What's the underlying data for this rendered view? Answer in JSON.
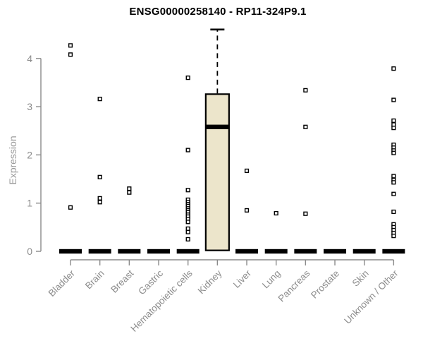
{
  "figure": {
    "title": "ENSG00000258140 - RP11-324P9.1",
    "y_axis_title": "Expression"
  },
  "colors": {
    "box_fill": "#ece5cb",
    "box_stroke": "#000000",
    "median_color": "#000000",
    "zero_bar_color": "#000000",
    "outlier_stroke": "#000000",
    "outlier_fill": "#ffffff",
    "axis_color": "#8a8a8a",
    "tick_label_color": "#8c8c8c",
    "title_color": "#000000",
    "background": "#ffffff"
  },
  "chart_data": {
    "type": "boxplot",
    "title": "ENSG00000258140 - RP11-324P9.1",
    "xlabel": "",
    "ylabel": "Expression",
    "ylim": [
      0,
      4.65
    ],
    "yticks": [
      0,
      1,
      2,
      3,
      4
    ],
    "grid": false,
    "legend": "none",
    "categories": [
      "Bladder",
      "Brain",
      "Breast",
      "Gastric",
      "Hematopoietic cells",
      "Kidney",
      "Liver",
      "Lung",
      "Pancreas",
      "Prostate",
      "Skin",
      "Unknown / Other"
    ],
    "series": [
      {
        "category": "Bladder",
        "box": {
          "q1": 0,
          "median": 0,
          "q3": 0,
          "whisker_low": 0,
          "whisker_high": 0
        },
        "outliers": [
          4.27,
          4.08,
          0.91
        ]
      },
      {
        "category": "Brain",
        "box": {
          "q1": 0,
          "median": 0,
          "q3": 0,
          "whisker_low": 0,
          "whisker_high": 0
        },
        "outliers": [
          3.16,
          1.54,
          1.1,
          1.02
        ]
      },
      {
        "category": "Breast",
        "box": {
          "q1": 0,
          "median": 0,
          "q3": 0,
          "whisker_low": 0,
          "whisker_high": 0
        },
        "outliers": [
          1.3,
          1.22
        ]
      },
      {
        "category": "Gastric",
        "box": {
          "q1": 0,
          "median": 0,
          "q3": 0,
          "whisker_low": 0,
          "whisker_high": 0
        },
        "outliers": []
      },
      {
        "category": "Hematopoietic cells",
        "box": {
          "q1": 0,
          "median": 0,
          "q3": 0,
          "whisker_low": 0,
          "whisker_high": 0
        },
        "outliers": [
          3.6,
          2.1,
          1.27,
          1.07,
          1.02,
          0.98,
          0.94,
          0.89,
          0.85,
          0.81,
          0.76,
          0.72,
          0.67,
          0.61,
          0.47,
          0.4,
          0.25
        ]
      },
      {
        "category": "Kidney",
        "box": {
          "q1": 0.02,
          "median": 2.58,
          "q3": 3.26,
          "whisker_low": 0.02,
          "whisker_high": 4.6
        },
        "outliers": []
      },
      {
        "category": "Liver",
        "box": {
          "q1": 0,
          "median": 0,
          "q3": 0,
          "whisker_low": 0,
          "whisker_high": 0
        },
        "outliers": [
          1.67,
          0.85
        ]
      },
      {
        "category": "Lung",
        "box": {
          "q1": 0,
          "median": 0,
          "q3": 0,
          "whisker_low": 0,
          "whisker_high": 0
        },
        "outliers": [
          0.79
        ]
      },
      {
        "category": "Pancreas",
        "box": {
          "q1": 0,
          "median": 0,
          "q3": 0,
          "whisker_low": 0,
          "whisker_high": 0
        },
        "outliers": [
          3.34,
          2.58,
          0.78
        ]
      },
      {
        "category": "Prostate",
        "box": {
          "q1": 0,
          "median": 0,
          "q3": 0,
          "whisker_low": 0,
          "whisker_high": 0
        },
        "outliers": []
      },
      {
        "category": "Skin",
        "box": {
          "q1": 0,
          "median": 0,
          "q3": 0,
          "whisker_low": 0,
          "whisker_high": 0
        },
        "outliers": []
      },
      {
        "category": "Unknown / Other",
        "box": {
          "q1": 0,
          "median": 0,
          "q3": 0,
          "whisker_low": 0,
          "whisker_high": 0
        },
        "outliers": [
          3.79,
          3.14,
          2.71,
          2.63,
          2.56,
          2.21,
          2.15,
          2.09,
          2.04,
          1.56,
          1.48,
          1.43,
          1.19,
          0.82,
          0.56,
          0.5,
          0.44,
          0.38,
          0.32
        ]
      }
    ]
  }
}
